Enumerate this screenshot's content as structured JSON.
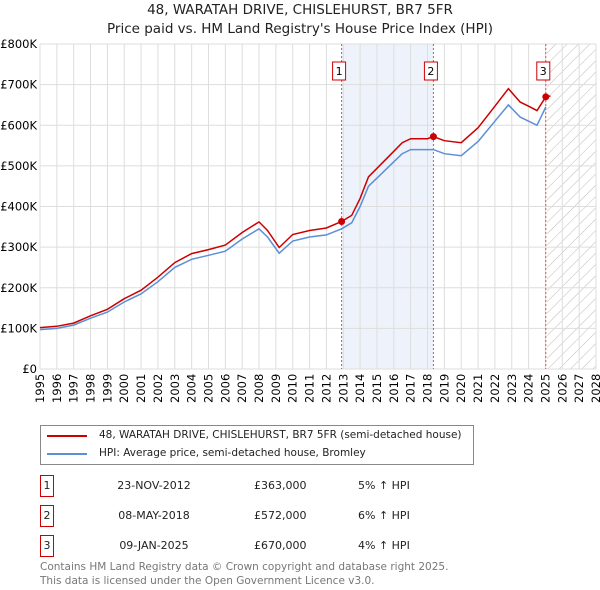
{
  "title": "48, WARATAH DRIVE, CHISLEHURST, BR7 5FR",
  "subtitle": "Price paid vs. HM Land Registry's House Price Index (HPI)",
  "chart_data": {
    "type": "line",
    "xlim": [
      1995,
      2028
    ],
    "ylim": [
      0,
      800000
    ],
    "yticks": [
      {
        "v": 0,
        "label": "£0"
      },
      {
        "v": 100000,
        "label": "£100K"
      },
      {
        "v": 200000,
        "label": "£200K"
      },
      {
        "v": 300000,
        "label": "£300K"
      },
      {
        "v": 400000,
        "label": "£400K"
      },
      {
        "v": 500000,
        "label": "£500K"
      },
      {
        "v": 600000,
        "label": "£600K"
      },
      {
        "v": 700000,
        "label": "£700K"
      },
      {
        "v": 800000,
        "label": "£800K"
      }
    ],
    "xticks": [
      "1995",
      "1996",
      "1997",
      "1998",
      "1999",
      "2000",
      "2001",
      "2002",
      "2003",
      "2004",
      "2005",
      "2006",
      "2007",
      "2008",
      "2009",
      "2010",
      "2011",
      "2012",
      "2013",
      "2014",
      "2015",
      "2016",
      "2017",
      "2018",
      "2019",
      "2020",
      "2021",
      "2022",
      "2023",
      "2024",
      "2025",
      "2026",
      "2027",
      "2028"
    ],
    "grid": true,
    "colors": {
      "property": "#cc0000",
      "hpi": "#5b8fd6",
      "shade": "#eef3fb"
    },
    "series": [
      {
        "name": "48, WARATAH DRIVE, CHISLEHURST, BR7 5FR (semi-detached house)",
        "key": "property",
        "x": [
          1995,
          1996,
          1997,
          1998,
          1999,
          2000,
          2001,
          2002,
          2003,
          2004,
          2005,
          2006,
          2007,
          2008,
          2008.5,
          2009.2,
          2010,
          2011,
          2012,
          2012.9,
          2013.5,
          2014,
          2014.5,
          2015,
          2016,
          2016.5,
          2017,
          2018,
          2018.35,
          2019,
          2020,
          2021,
          2022,
          2022.8,
          2023.5,
          2024,
          2024.5,
          2025.02,
          2025.3
        ],
        "y": [
          102000,
          105000,
          113000,
          131000,
          147000,
          173000,
          194000,
          226000,
          262000,
          284000,
          294000,
          305000,
          336000,
          362000,
          341000,
          299000,
          331000,
          341000,
          347000,
          363000,
          378000,
          420000,
          473000,
          494000,
          536000,
          557000,
          567000,
          567000,
          572000,
          562000,
          557000,
          594000,
          647000,
          690000,
          657000,
          647000,
          636000,
          670000,
          672000
        ]
      },
      {
        "name": "HPI: Average price, semi-detached house, Bromley",
        "key": "hpi",
        "x": [
          1995,
          1996,
          1997,
          1998,
          1999,
          2000,
          2001,
          2002,
          2003,
          2004,
          2005,
          2006,
          2007,
          2008,
          2008.5,
          2009.2,
          2010,
          2011,
          2012,
          2012.9,
          2013.5,
          2014,
          2014.5,
          2015,
          2016,
          2016.5,
          2017,
          2018,
          2018.35,
          2019,
          2020,
          2021,
          2022,
          2022.8,
          2023.5,
          2024,
          2024.5,
          2025.02
        ],
        "y": [
          97000,
          100000,
          108000,
          125000,
          140000,
          165000,
          185000,
          215000,
          250000,
          270000,
          280000,
          290000,
          320000,
          345000,
          325000,
          285000,
          315000,
          325000,
          330000,
          345000,
          360000,
          400000,
          450000,
          470000,
          510000,
          530000,
          540000,
          540000,
          540000,
          530000,
          525000,
          560000,
          610000,
          650000,
          620000,
          610000,
          600000,
          645000
        ]
      }
    ],
    "sales": [
      {
        "label": "1",
        "x": 2012.9,
        "y": 363000
      },
      {
        "label": "2",
        "x": 2018.35,
        "y": 572000
      },
      {
        "label": "3",
        "x": 2025.02,
        "y": 670000
      }
    ]
  },
  "legend": {
    "property": "48, WARATAH DRIVE, CHISLEHURST, BR7 5FR (semi-detached house)",
    "hpi": "HPI: Average price, semi-detached house, Bromley"
  },
  "transactions": [
    {
      "num": "1",
      "date": "23-NOV-2012",
      "price": "£363,000",
      "hpi": "5% ↑ HPI"
    },
    {
      "num": "2",
      "date": "08-MAY-2018",
      "price": "£572,000",
      "hpi": "6% ↑ HPI"
    },
    {
      "num": "3",
      "date": "09-JAN-2025",
      "price": "£670,000",
      "hpi": "4% ↑ HPI"
    }
  ],
  "footer": [
    "Contains HM Land Registry data © Crown copyright and database right 2025.",
    "This data is licensed under the Open Government Licence v3.0."
  ]
}
